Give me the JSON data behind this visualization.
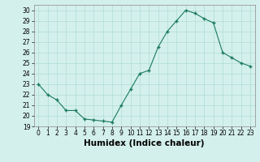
{
  "x": [
    0,
    1,
    2,
    3,
    4,
    5,
    6,
    7,
    8,
    9,
    10,
    11,
    12,
    13,
    14,
    15,
    16,
    17,
    18,
    19,
    20,
    21,
    22,
    23
  ],
  "y": [
    23,
    22,
    21.5,
    20.5,
    20.5,
    19.7,
    19.6,
    19.5,
    19.4,
    21,
    22.5,
    24,
    24.3,
    26.5,
    28,
    29,
    30,
    29.7,
    29.2,
    28.8,
    26,
    25.5,
    25,
    24.7
  ],
  "line_color": "#1a7a5e",
  "marker": "D",
  "marker_size": 2,
  "bg_color": "#d4f0ec",
  "grid_color": "#b0ddd6",
  "xlabel": "Humidex (Indice chaleur)",
  "ylabel": "",
  "xlim": [
    -0.5,
    23.5
  ],
  "ylim": [
    19,
    30.5
  ],
  "yticks": [
    19,
    20,
    21,
    22,
    23,
    24,
    25,
    26,
    27,
    28,
    29,
    30
  ],
  "xticks": [
    0,
    1,
    2,
    3,
    4,
    5,
    6,
    7,
    8,
    9,
    10,
    11,
    12,
    13,
    14,
    15,
    16,
    17,
    18,
    19,
    20,
    21,
    22,
    23
  ],
  "tick_labelsize": 5.5,
  "xlabel_fontsize": 7.5
}
